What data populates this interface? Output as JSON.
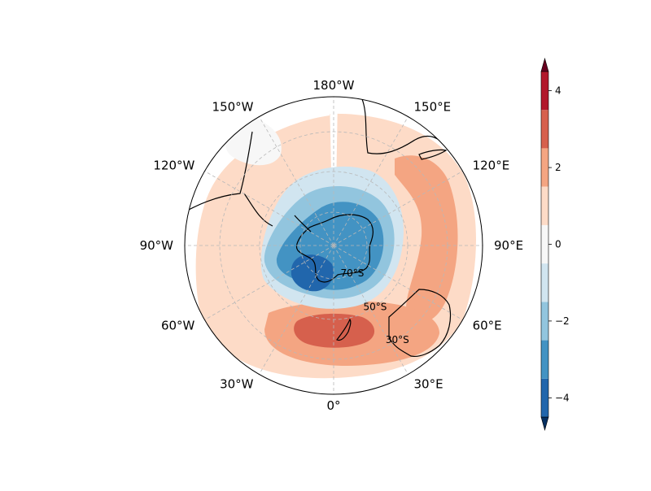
{
  "map": {
    "projection": "south-polar-stereographic",
    "longitude_labels": [
      {
        "lon": 0,
        "text": "0°"
      },
      {
        "lon": 30,
        "text": "30°E"
      },
      {
        "lon": 60,
        "text": "60°E"
      },
      {
        "lon": 90,
        "text": "90°E"
      },
      {
        "lon": 120,
        "text": "120°E"
      },
      {
        "lon": 150,
        "text": "150°E"
      },
      {
        "lon": 180,
        "text": "180°W"
      },
      {
        "lon": -150,
        "text": "150°W"
      },
      {
        "lon": -120,
        "text": "120°W"
      },
      {
        "lon": -90,
        "text": "90°W"
      },
      {
        "lon": -60,
        "text": "60°W"
      },
      {
        "lon": -30,
        "text": "30°W"
      }
    ],
    "latitude_labels": [
      {
        "lat": -70,
        "text": "70°S"
      },
      {
        "lat": -50,
        "text": "50°S"
      },
      {
        "lat": -30,
        "text": "30°S"
      }
    ],
    "gridlines": true
  },
  "colorbar": {
    "levels": [
      -5,
      -4.5,
      -3.5,
      -2.5,
      -1.5,
      -0.5,
      0.5,
      1.5,
      2.5,
      3.5,
      4.5,
      5
    ],
    "colors": [
      "#053061",
      "#2166ac",
      "#4393c3",
      "#92c5de",
      "#d1e5f0",
      "#f7f7f7",
      "#fddbc7",
      "#f4a582",
      "#d6604d",
      "#b2182b",
      "#67001f"
    ],
    "ticks": [
      {
        "value": -4,
        "text": "−4"
      },
      {
        "value": -2,
        "text": "−2"
      },
      {
        "value": 0,
        "text": "0"
      },
      {
        "value": 2,
        "text": "2"
      },
      {
        "value": 4,
        "text": "4"
      }
    ],
    "extend": "both"
  }
}
